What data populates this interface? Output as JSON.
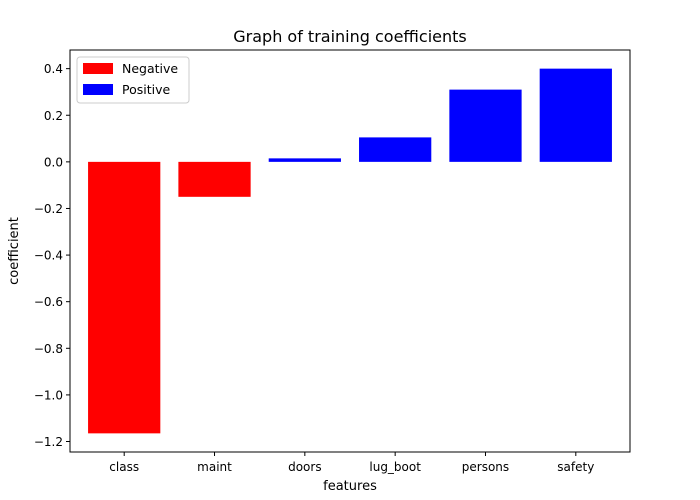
{
  "chart_data": {
    "type": "bar",
    "title": "Graph of training coefficients",
    "xlabel": "features",
    "ylabel": "coefficient",
    "categories": [
      "class",
      "maint",
      "doors",
      "lug_boot",
      "persons",
      "safety"
    ],
    "values": [
      -1.165,
      -0.15,
      0.015,
      0.105,
      0.31,
      0.4
    ],
    "ylim": [
      -1.245,
      0.48
    ],
    "yticks": [
      -1.2,
      -1.0,
      -0.8,
      -0.6,
      -0.4,
      -0.2,
      0.0,
      0.2,
      0.4
    ],
    "ytick_labels": [
      "−1.2",
      "−1.0",
      "−0.8",
      "−0.6",
      "−0.4",
      "−0.2",
      "0.0",
      "0.2",
      "0.4"
    ],
    "grid": false,
    "legend": {
      "placement": "top-left",
      "entries": [
        {
          "label": "Negative",
          "color": "#ff0000"
        },
        {
          "label": "Positive",
          "color": "#0000ff"
        }
      ]
    },
    "colors": {
      "negative": "#ff0000",
      "positive": "#0000ff"
    }
  }
}
